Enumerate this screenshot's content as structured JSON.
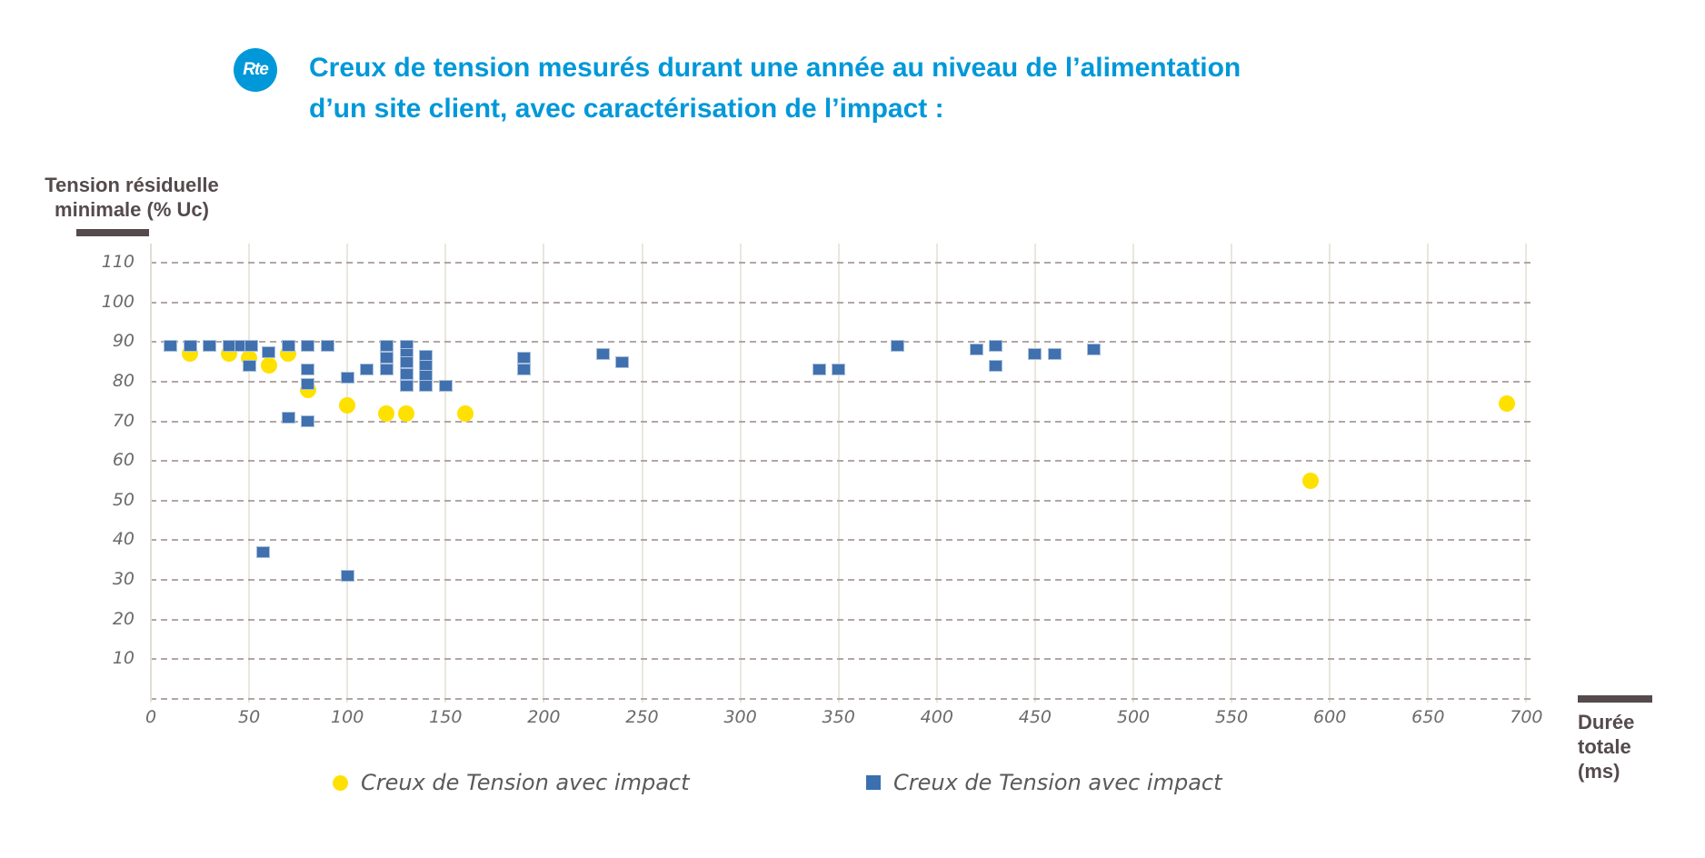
{
  "header": {
    "logo_text": "Rte",
    "title_line1": "Creux de tension mesurés durant une année au niveau de l’alimentation",
    "title_line2": "d’un site client,  avec caractérisation de l’impact :"
  },
  "chart_data": {
    "type": "scatter",
    "title": "Creux de tension mesurés durant une année au niveau de l’alimentation d’un site client, avec caractérisation de l’impact",
    "xlabel": "Durée totale (ms)",
    "ylabel": "Tension résiduelle minimale (% Uc)",
    "x_axis": {
      "title_lines": [
        "Durée",
        "totale",
        "(ms)"
      ],
      "min": 0,
      "max": 700,
      "gridlines": [
        0,
        50,
        100,
        150,
        200,
        250,
        300,
        350,
        400,
        450,
        500,
        550,
        600,
        650,
        700
      ],
      "tick_labels": [
        "0",
        "50",
        "100",
        "150",
        "200",
        "250",
        "300",
        "350",
        "400",
        "450",
        "500",
        "550",
        "600",
        "650",
        "700"
      ],
      "grid_style": "solid-light-vertical"
    },
    "y_axis": {
      "title_lines": [
        "Tension résiduelle",
        "minimale (% Uc)"
      ],
      "min": 0,
      "max": 110,
      "gridlines": [
        0,
        10,
        20,
        30,
        40,
        50,
        60,
        70,
        80,
        90,
        100,
        110
      ],
      "tick_labels": [
        "10",
        "20",
        "30",
        "40",
        "50",
        "60",
        "70",
        "80",
        "90",
        "100",
        "110"
      ],
      "tick_values": [
        10,
        20,
        30,
        40,
        50,
        60,
        70,
        80,
        90,
        100,
        110
      ],
      "grid_style": "dashed-horizontal"
    },
    "legend_position": "bottom",
    "legend": [
      {
        "label": "Creux de Tension avec impact",
        "marker": "circle",
        "color": "#FFE100"
      },
      {
        "label": "Creux de Tension avec impact",
        "marker": "square",
        "color": "#4170AE"
      }
    ],
    "series": [
      {
        "name": "Creux de Tension avec impact",
        "marker": "circle",
        "color": "#FFE100",
        "points": [
          [
            20,
            87
          ],
          [
            40,
            87
          ],
          [
            50,
            86
          ],
          [
            60,
            84
          ],
          [
            70,
            87
          ],
          [
            80,
            78
          ],
          [
            100,
            74
          ],
          [
            120,
            72
          ],
          [
            130,
            72
          ],
          [
            160,
            72
          ],
          [
            590,
            55
          ],
          [
            690,
            74.5
          ]
        ]
      },
      {
        "name": "Creux de Tension avec impact",
        "marker": "square",
        "color": "#4170AE",
        "points": [
          [
            10,
            89
          ],
          [
            20,
            89
          ],
          [
            30,
            89
          ],
          [
            40,
            89
          ],
          [
            46,
            89
          ],
          [
            51,
            89
          ],
          [
            50,
            84
          ],
          [
            60,
            87.5
          ],
          [
            70,
            89
          ],
          [
            80,
            89
          ],
          [
            90,
            89
          ],
          [
            70,
            71
          ],
          [
            80,
            83
          ],
          [
            80,
            79.5
          ],
          [
            80,
            70
          ],
          [
            57,
            37
          ],
          [
            100,
            31
          ],
          [
            100,
            81
          ],
          [
            110,
            83
          ],
          [
            120,
            89
          ],
          [
            120,
            86
          ],
          [
            120,
            83
          ],
          [
            130,
            89
          ],
          [
            130,
            87
          ],
          [
            130,
            85
          ],
          [
            130,
            82
          ],
          [
            130,
            79
          ],
          [
            140,
            86.5
          ],
          [
            140,
            84
          ],
          [
            140,
            81.5
          ],
          [
            140,
            79
          ],
          [
            150,
            79
          ],
          [
            190,
            86
          ],
          [
            190,
            83
          ],
          [
            230,
            87
          ],
          [
            240,
            85
          ],
          [
            340,
            83
          ],
          [
            350,
            83
          ],
          [
            380,
            89
          ],
          [
            420,
            88
          ],
          [
            430,
            89
          ],
          [
            430,
            84
          ],
          [
            450,
            87
          ],
          [
            460,
            87
          ],
          [
            480,
            88
          ]
        ]
      }
    ],
    "colors": {
      "title_blue": "#0098D8",
      "axis_title_text": "#554A4C",
      "tick_text": "#6A6A6A",
      "dashed_grid": "#B2A6A6",
      "vertical_grid": "#E9E7DE",
      "series_yellow": "#FFE100",
      "series_blue": "#4170AE",
      "series_blue_border": "#A6BFDC"
    }
  }
}
